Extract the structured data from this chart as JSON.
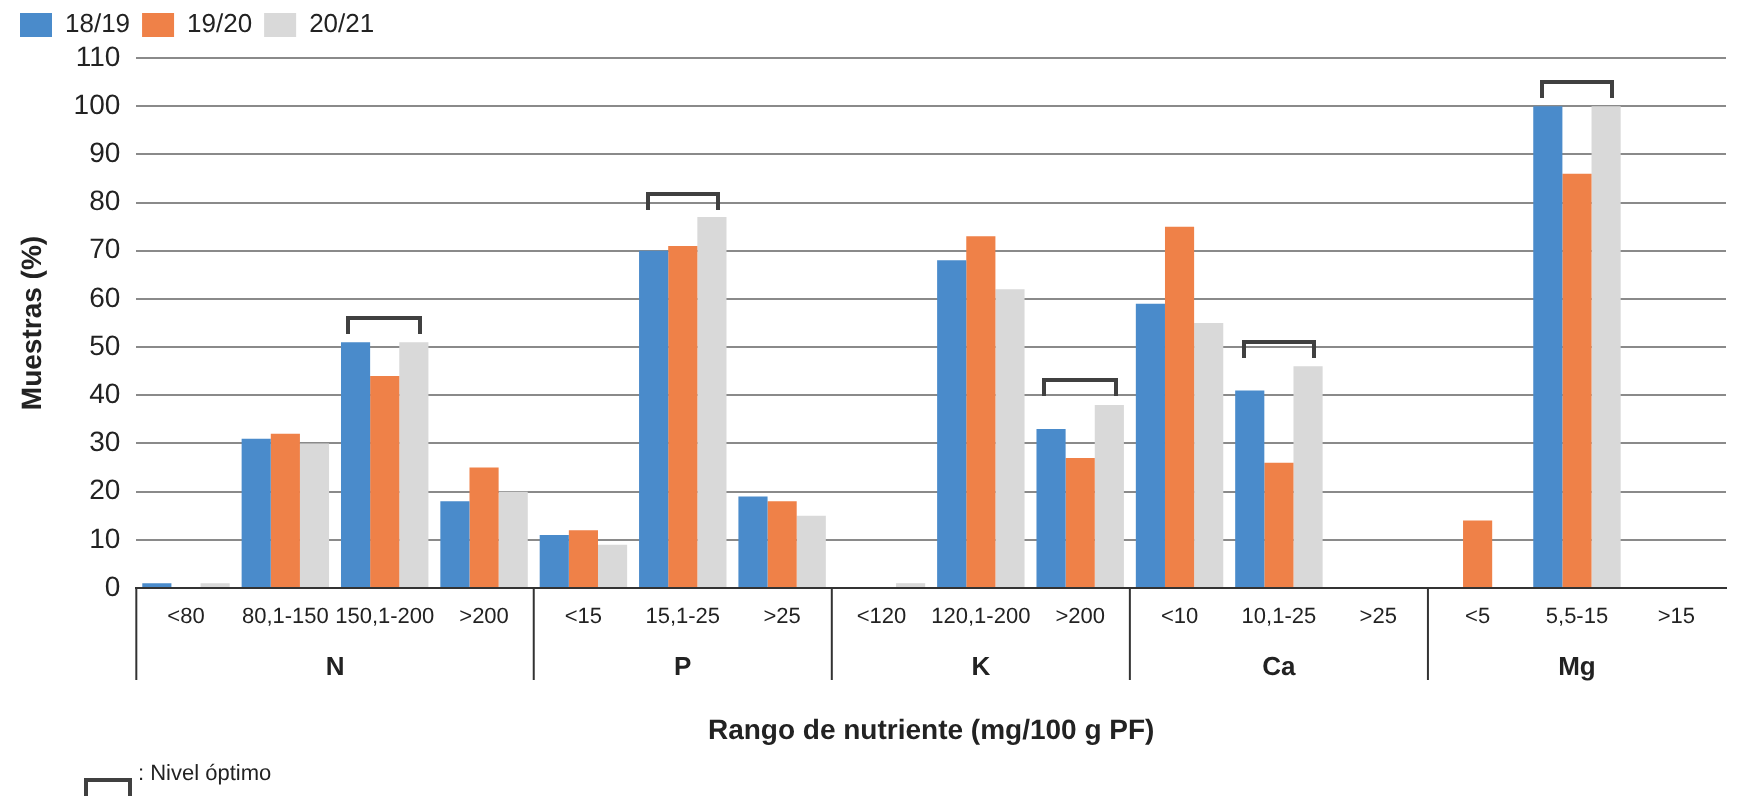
{
  "chart_data": {
    "type": "bar",
    "xlabel": "Rango de nutriente (mg/100 g PF)",
    "ylabel": "Muestras (%)",
    "categories": [
      "<80",
      "80,1-150",
      "150,1-200",
      ">200",
      "<15",
      "15,1-25",
      ">25",
      "<120",
      "120,1-200",
      ">200",
      "<10",
      "10,1-25",
      ">25",
      "<5",
      "5,5-15",
      ">15"
    ],
    "series": [
      {
        "name": "18/19",
        "color": "#4a8bcb",
        "values": [
          1,
          31,
          51,
          18,
          11,
          70,
          19,
          0,
          68,
          33,
          59,
          41,
          0,
          0,
          100,
          0
        ]
      },
      {
        "name": "19/20",
        "color": "#ef8148",
        "values": [
          0,
          32,
          44,
          25,
          12,
          71,
          18,
          0,
          73,
          27,
          75,
          26,
          0,
          14,
          86,
          0
        ]
      },
      {
        "name": "20/21",
        "color": "#d9d9d9",
        "values": [
          1,
          30,
          51,
          20,
          9,
          77,
          15,
          1,
          62,
          38,
          55,
          46,
          0,
          0,
          100,
          0
        ]
      }
    ],
    "ylim": [
      0,
      110
    ],
    "yticks": [
      0,
      10,
      20,
      30,
      40,
      50,
      60,
      70,
      80,
      90,
      100,
      110
    ],
    "grid": "y",
    "legend": "top left",
    "annotations": [
      "N",
      "P",
      "K",
      "Ca",
      "Mg",
      ": Nivel óptimo"
    ]
  }
}
